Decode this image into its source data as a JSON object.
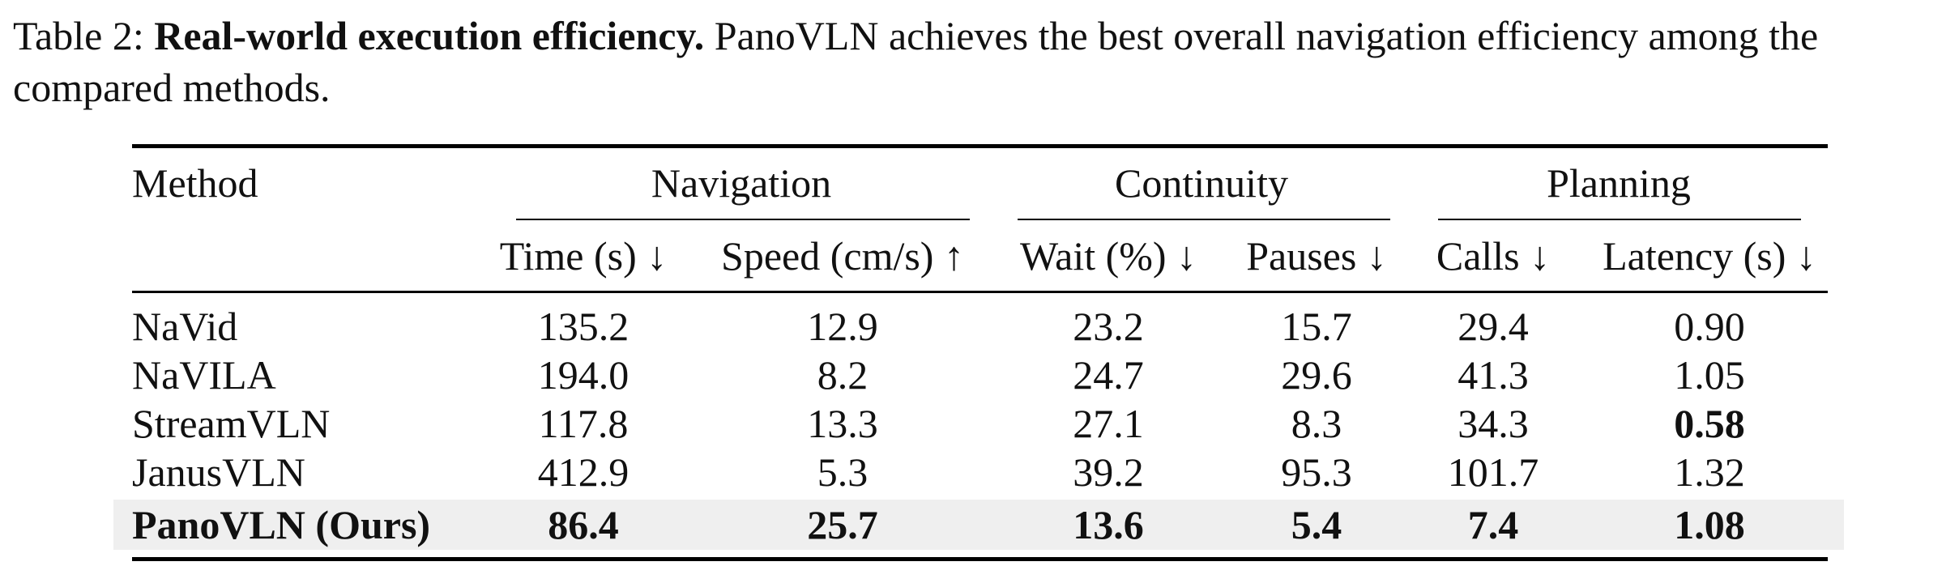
{
  "caption": {
    "label": "Table 2:",
    "title": "Real-world execution efficiency.",
    "text": "PanoVLN achieves the best overall navigation efficiency among the compared methods."
  },
  "table": {
    "method_header": "Method",
    "groups": [
      "Navigation",
      "Continuity",
      "Planning"
    ],
    "columns": [
      "Time (s) ↓",
      "Speed (cm/s) ↑",
      "Wait (%) ↓",
      "Pauses ↓",
      "Calls ↓",
      "Latency (s) ↓"
    ],
    "rows": [
      {
        "method": "NaVid",
        "values": [
          "135.2",
          "12.9",
          "23.2",
          "15.7",
          "29.4",
          "0.90"
        ]
      },
      {
        "method": "NaVILA",
        "values": [
          "194.0",
          "8.2",
          "24.7",
          "29.6",
          "41.3",
          "1.05"
        ]
      },
      {
        "method": "StreamVLN",
        "values": [
          "117.8",
          "13.3",
          "27.1",
          "8.3",
          "34.3",
          "0.58"
        ]
      },
      {
        "method": "JanusVLN",
        "values": [
          "412.9",
          "5.3",
          "39.2",
          "95.3",
          "101.7",
          "1.32"
        ]
      },
      {
        "method": "PanoVLN (Ours)",
        "values": [
          "86.4",
          "25.7",
          "13.6",
          "5.4",
          "7.4",
          "1.08"
        ]
      }
    ],
    "bold_cells": [
      [
        2,
        6
      ],
      [
        4,
        0
      ],
      [
        4,
        1
      ],
      [
        4,
        2
      ],
      [
        4,
        3
      ],
      [
        4,
        4
      ],
      [
        4,
        5
      ]
    ],
    "highlight_row": 4,
    "highlight_color": "#efefef"
  }
}
